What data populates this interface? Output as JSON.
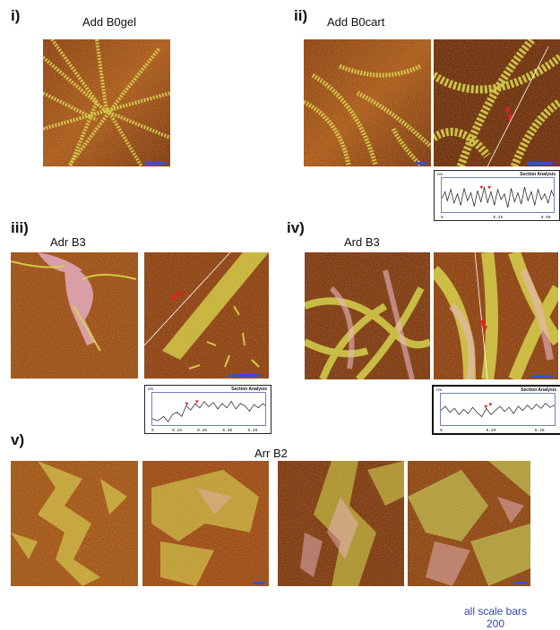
{
  "panels": {
    "i": {
      "roman": "i)",
      "title": "Add B0gel"
    },
    "ii": {
      "roman": "ii)",
      "title": "Add B0cart"
    },
    "iii": {
      "roman": "iii)",
      "title": "Adr B3"
    },
    "iv": {
      "roman": "iv)",
      "title": "Ard B3"
    },
    "v": {
      "roman": "v)",
      "title": "Arr B2"
    }
  },
  "section_analysis": {
    "title": "Section Analysis",
    "unit": "nm",
    "ii": {
      "ticks": [
        "0",
        "0.25",
        "0.50"
      ],
      "xunit": "µm"
    },
    "iii": {
      "ticks": [
        "0",
        "0.10",
        "0.20",
        "0.30",
        "0.40"
      ],
      "xunit": "µm"
    },
    "iv": {
      "ticks": [
        "0",
        "0.20",
        "0.40"
      ],
      "xunit": "µm"
    }
  },
  "footnote": {
    "line1": "all scale bars",
    "line2": "200"
  },
  "colors": {
    "afm_dark": "#6a2a0c",
    "afm_mid": "#a85418",
    "afm_fibril": "#d8d84a",
    "afm_pink": "#e8b0c8",
    "scale_bar": "#3a4fd0",
    "marker": "#e02020"
  }
}
